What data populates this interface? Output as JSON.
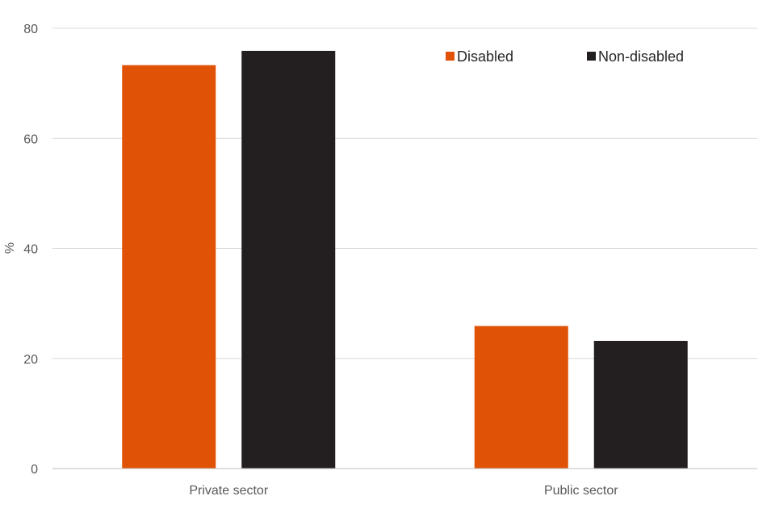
{
  "chart_data": {
    "type": "bar",
    "categories": [
      "Private sector",
      "Public sector"
    ],
    "series": [
      {
        "name": "Disabled",
        "values": [
          73.3,
          25.9
        ],
        "color": "#e05206"
      },
      {
        "name": "Non-disabled",
        "values": [
          75.9,
          23.2
        ],
        "color": "#231f20"
      }
    ],
    "title": "",
    "xlabel": "",
    "ylabel": "%",
    "ylim": [
      0,
      80
    ],
    "yticks": [
      0,
      20,
      40,
      60,
      80
    ],
    "grid": true,
    "legend_position": "top-right"
  }
}
